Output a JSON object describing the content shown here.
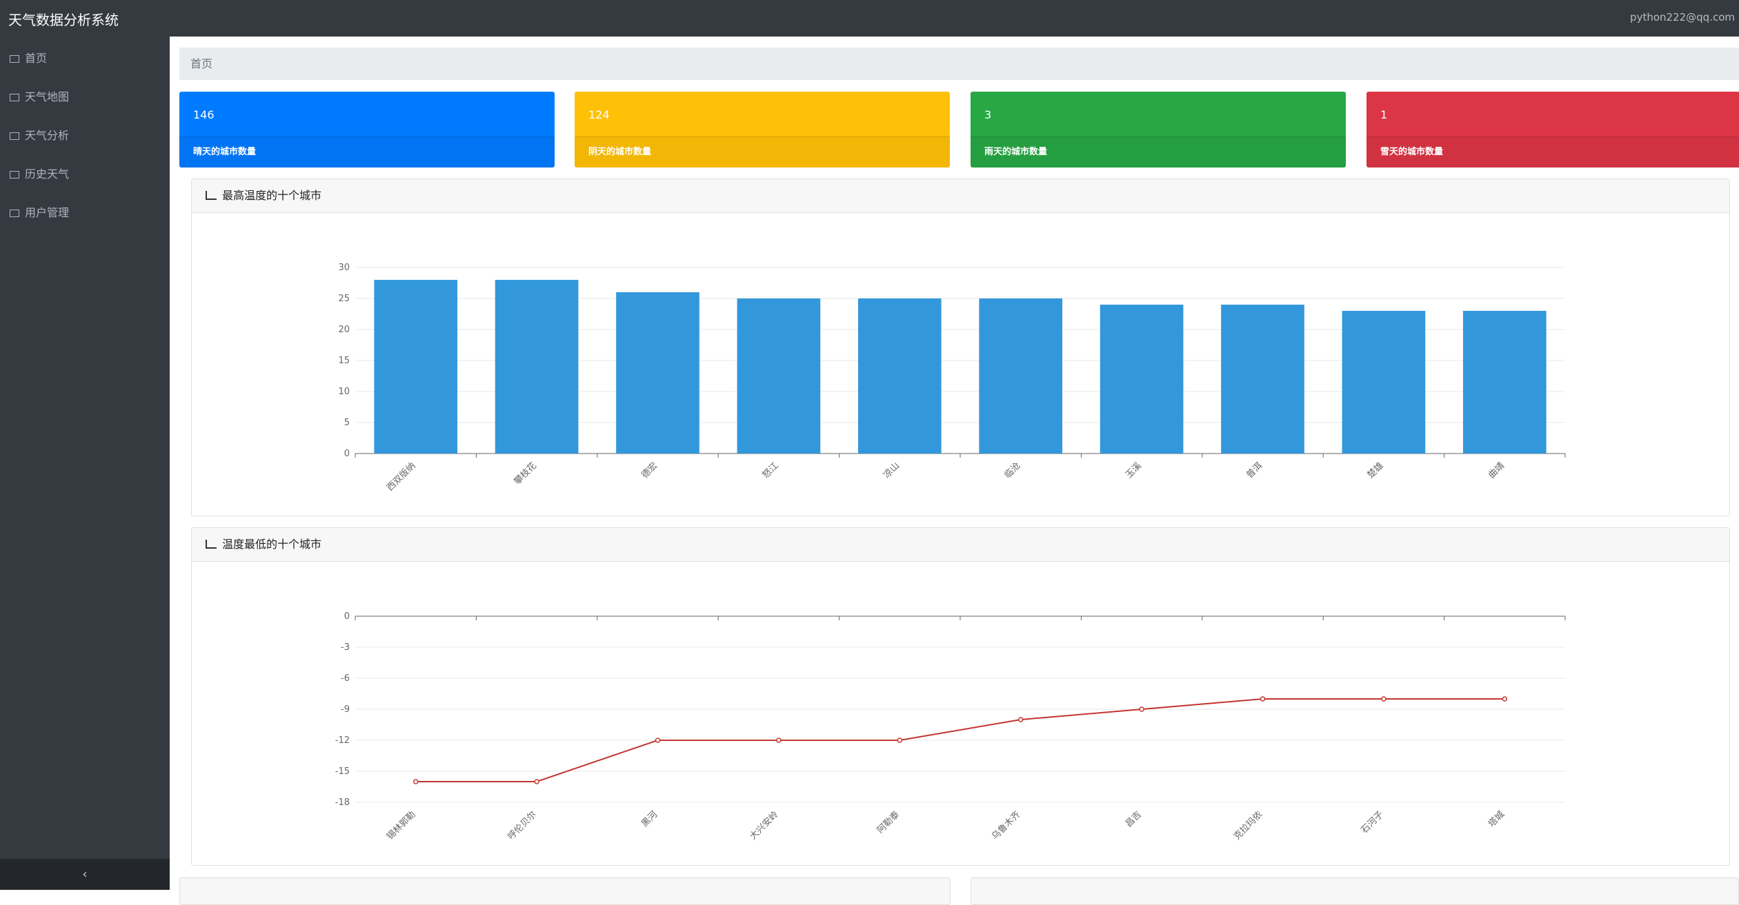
{
  "header": {
    "title": "天气数据分析系统",
    "user": "python222@qq.com"
  },
  "sidebar": {
    "items": [
      "首页",
      "天气地图",
      "天气分析",
      "历史天气",
      "用户管理"
    ]
  },
  "breadcrumb": "首页",
  "cards": [
    {
      "value": "146",
      "label": "晴天的城市数量"
    },
    {
      "value": "124",
      "label": "阴天的城市数量"
    },
    {
      "value": "3",
      "label": "雨天的城市数量"
    },
    {
      "value": "1",
      "label": "雪天的城市数量"
    }
  ],
  "chart_data": [
    {
      "type": "bar",
      "title": "最高温度的十个城市",
      "categories": [
        "西双版纳",
        "攀枝花",
        "德宏",
        "怒江",
        "凉山",
        "临沧",
        "玉溪",
        "普洱",
        "楚雄",
        "曲靖"
      ],
      "values": [
        28,
        28,
        26,
        25,
        25,
        25,
        24,
        24,
        23,
        23
      ],
      "color": "#3398db",
      "ylim": [
        0,
        30
      ],
      "yticks": [
        0,
        5,
        10,
        15,
        20,
        25,
        30
      ],
      "grid": true
    },
    {
      "type": "line",
      "title": "温度最低的十个城市",
      "categories": [
        "锡林郭勒",
        "呼伦贝尔",
        "黑河",
        "大兴安岭",
        "阿勒泰",
        "乌鲁木齐",
        "昌吉",
        "克拉玛依",
        "石河子",
        "塔城"
      ],
      "values": [
        -16,
        -16,
        -12,
        -12,
        -12,
        -10,
        -9,
        -8,
        -8,
        -8
      ],
      "color": "#c23531",
      "ylim": [
        -18,
        0
      ],
      "yticks": [
        0,
        -3,
        -6,
        -9,
        -12,
        -15,
        -18
      ],
      "grid": true
    }
  ]
}
